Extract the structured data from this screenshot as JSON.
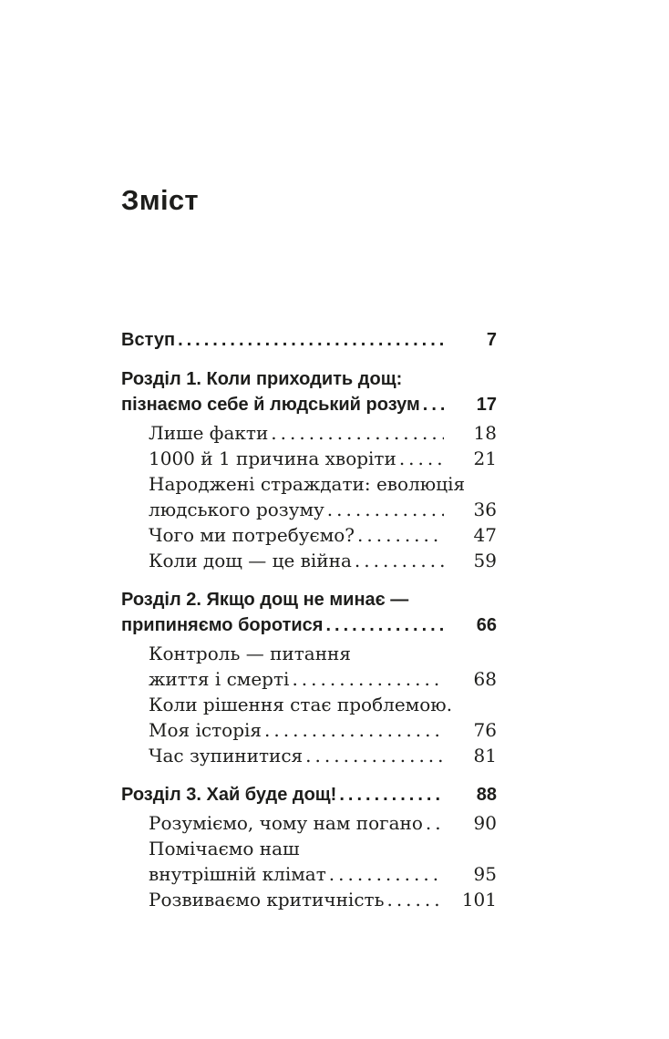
{
  "title": "Зміст",
  "toc": {
    "entries": [
      {
        "style": "chapter",
        "lines": [
          "Вступ"
        ],
        "page": "7"
      },
      {
        "style": "chapter",
        "lines": [
          "Розділ 1. Коли приходить дощ:",
          "пізнаємо себе й людський розум"
        ],
        "page": "17"
      },
      {
        "style": "section",
        "lines": [
          "Лише факти"
        ],
        "page": "18"
      },
      {
        "style": "section",
        "lines": [
          "1000 й 1 причина хворіти"
        ],
        "page": "21"
      },
      {
        "style": "section",
        "lines": [
          "Народжені страждати: еволюція",
          "людського розуму"
        ],
        "page": "36"
      },
      {
        "style": "section",
        "lines": [
          "Чого ми потребуємо?"
        ],
        "page": "47"
      },
      {
        "style": "section",
        "lines": [
          "Коли дощ — це війна"
        ],
        "page": "59"
      },
      {
        "style": "chapter",
        "lines": [
          "Розділ 2. Якщо дощ не минає —",
          "припиняємо боротися"
        ],
        "page": "66"
      },
      {
        "style": "section",
        "lines": [
          "Контроль — питання",
          "життя і смерті"
        ],
        "page": "68"
      },
      {
        "style": "section",
        "lines": [
          "Коли рішення стає проблемою.",
          "Моя історія"
        ],
        "page": "76"
      },
      {
        "style": "section",
        "lines": [
          "Час зупинитися"
        ],
        "page": "81"
      },
      {
        "style": "chapter",
        "lines": [
          "Розділ 3. Хай буде дощ!"
        ],
        "page": "88"
      },
      {
        "style": "section",
        "lines": [
          "Розуміємо, чому нам погано"
        ],
        "page": "90"
      },
      {
        "style": "section",
        "lines": [
          "Помічаємо наш",
          "внутрішній клімат"
        ],
        "page": "95"
      },
      {
        "style": "section",
        "lines": [
          "Розвиваємо критичність"
        ],
        "page": "101"
      }
    ]
  }
}
